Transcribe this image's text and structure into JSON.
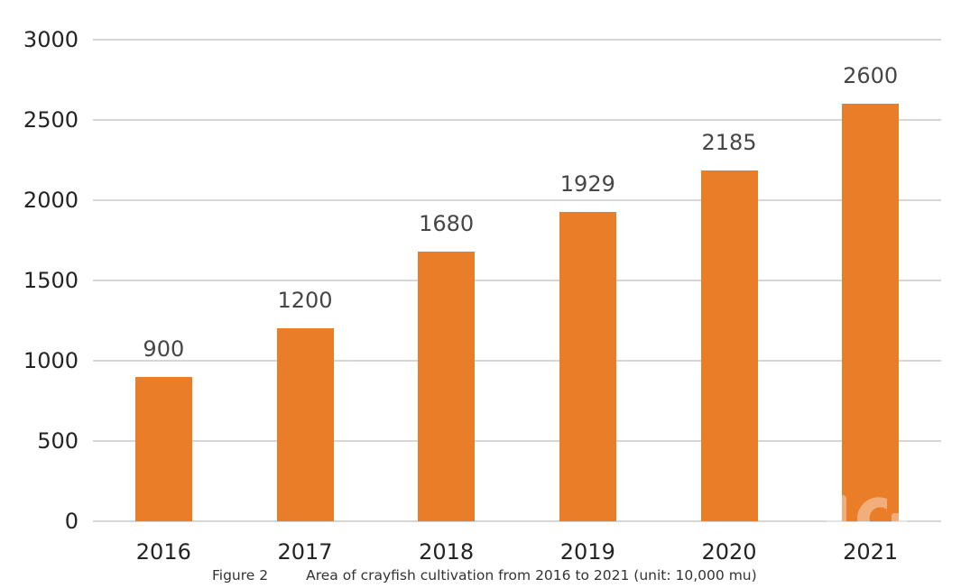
{
  "chart_data": {
    "type": "bar",
    "categories": [
      "2016",
      "2017",
      "2018",
      "2019",
      "2020",
      "2021"
    ],
    "values": [
      900,
      1200,
      1680,
      1929,
      2185,
      2600
    ],
    "title": "",
    "xlabel": "",
    "ylabel": "",
    "ylim": [
      0,
      3000
    ],
    "yticks": [
      0,
      500,
      1000,
      1500,
      2000,
      2500,
      3000
    ],
    "grid": true,
    "legend": false,
    "data_labels_shown": true
  },
  "caption": {
    "figure_label": "Figure 2",
    "text": "Area of crayfish cultivation from 2016 to 2021 (unit: 10,000 mu)"
  },
  "colors": {
    "bar": "#EA7D28",
    "gridline": "#D6D6D6",
    "axis_text": "#242424",
    "value_text": "#464646",
    "caption_text": "#333333"
  }
}
